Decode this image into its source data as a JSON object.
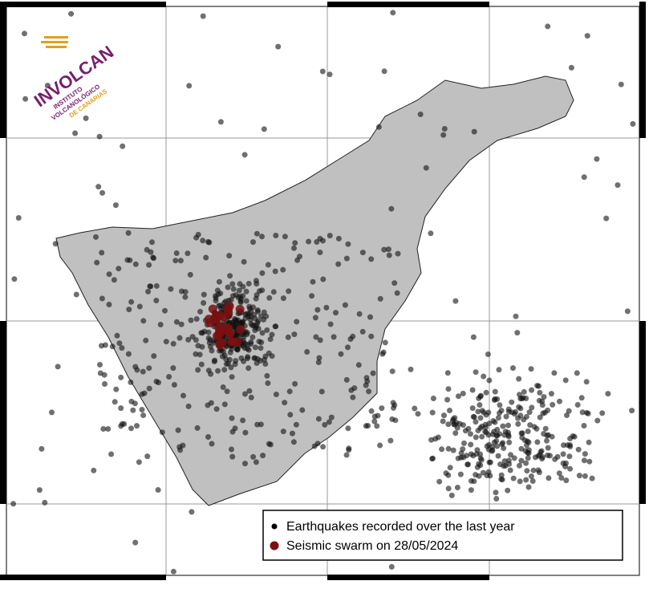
{
  "logo": {
    "title": "INVOLCAN",
    "line1": "INSTITUTO",
    "line2": "VOLCANOLÓGICO",
    "line3": "DE CANARIAS"
  },
  "legend": {
    "entries": [
      "Earthquakes recorded over the last year",
      "Seismic swarm on 28/05/2024"
    ]
  }
}
